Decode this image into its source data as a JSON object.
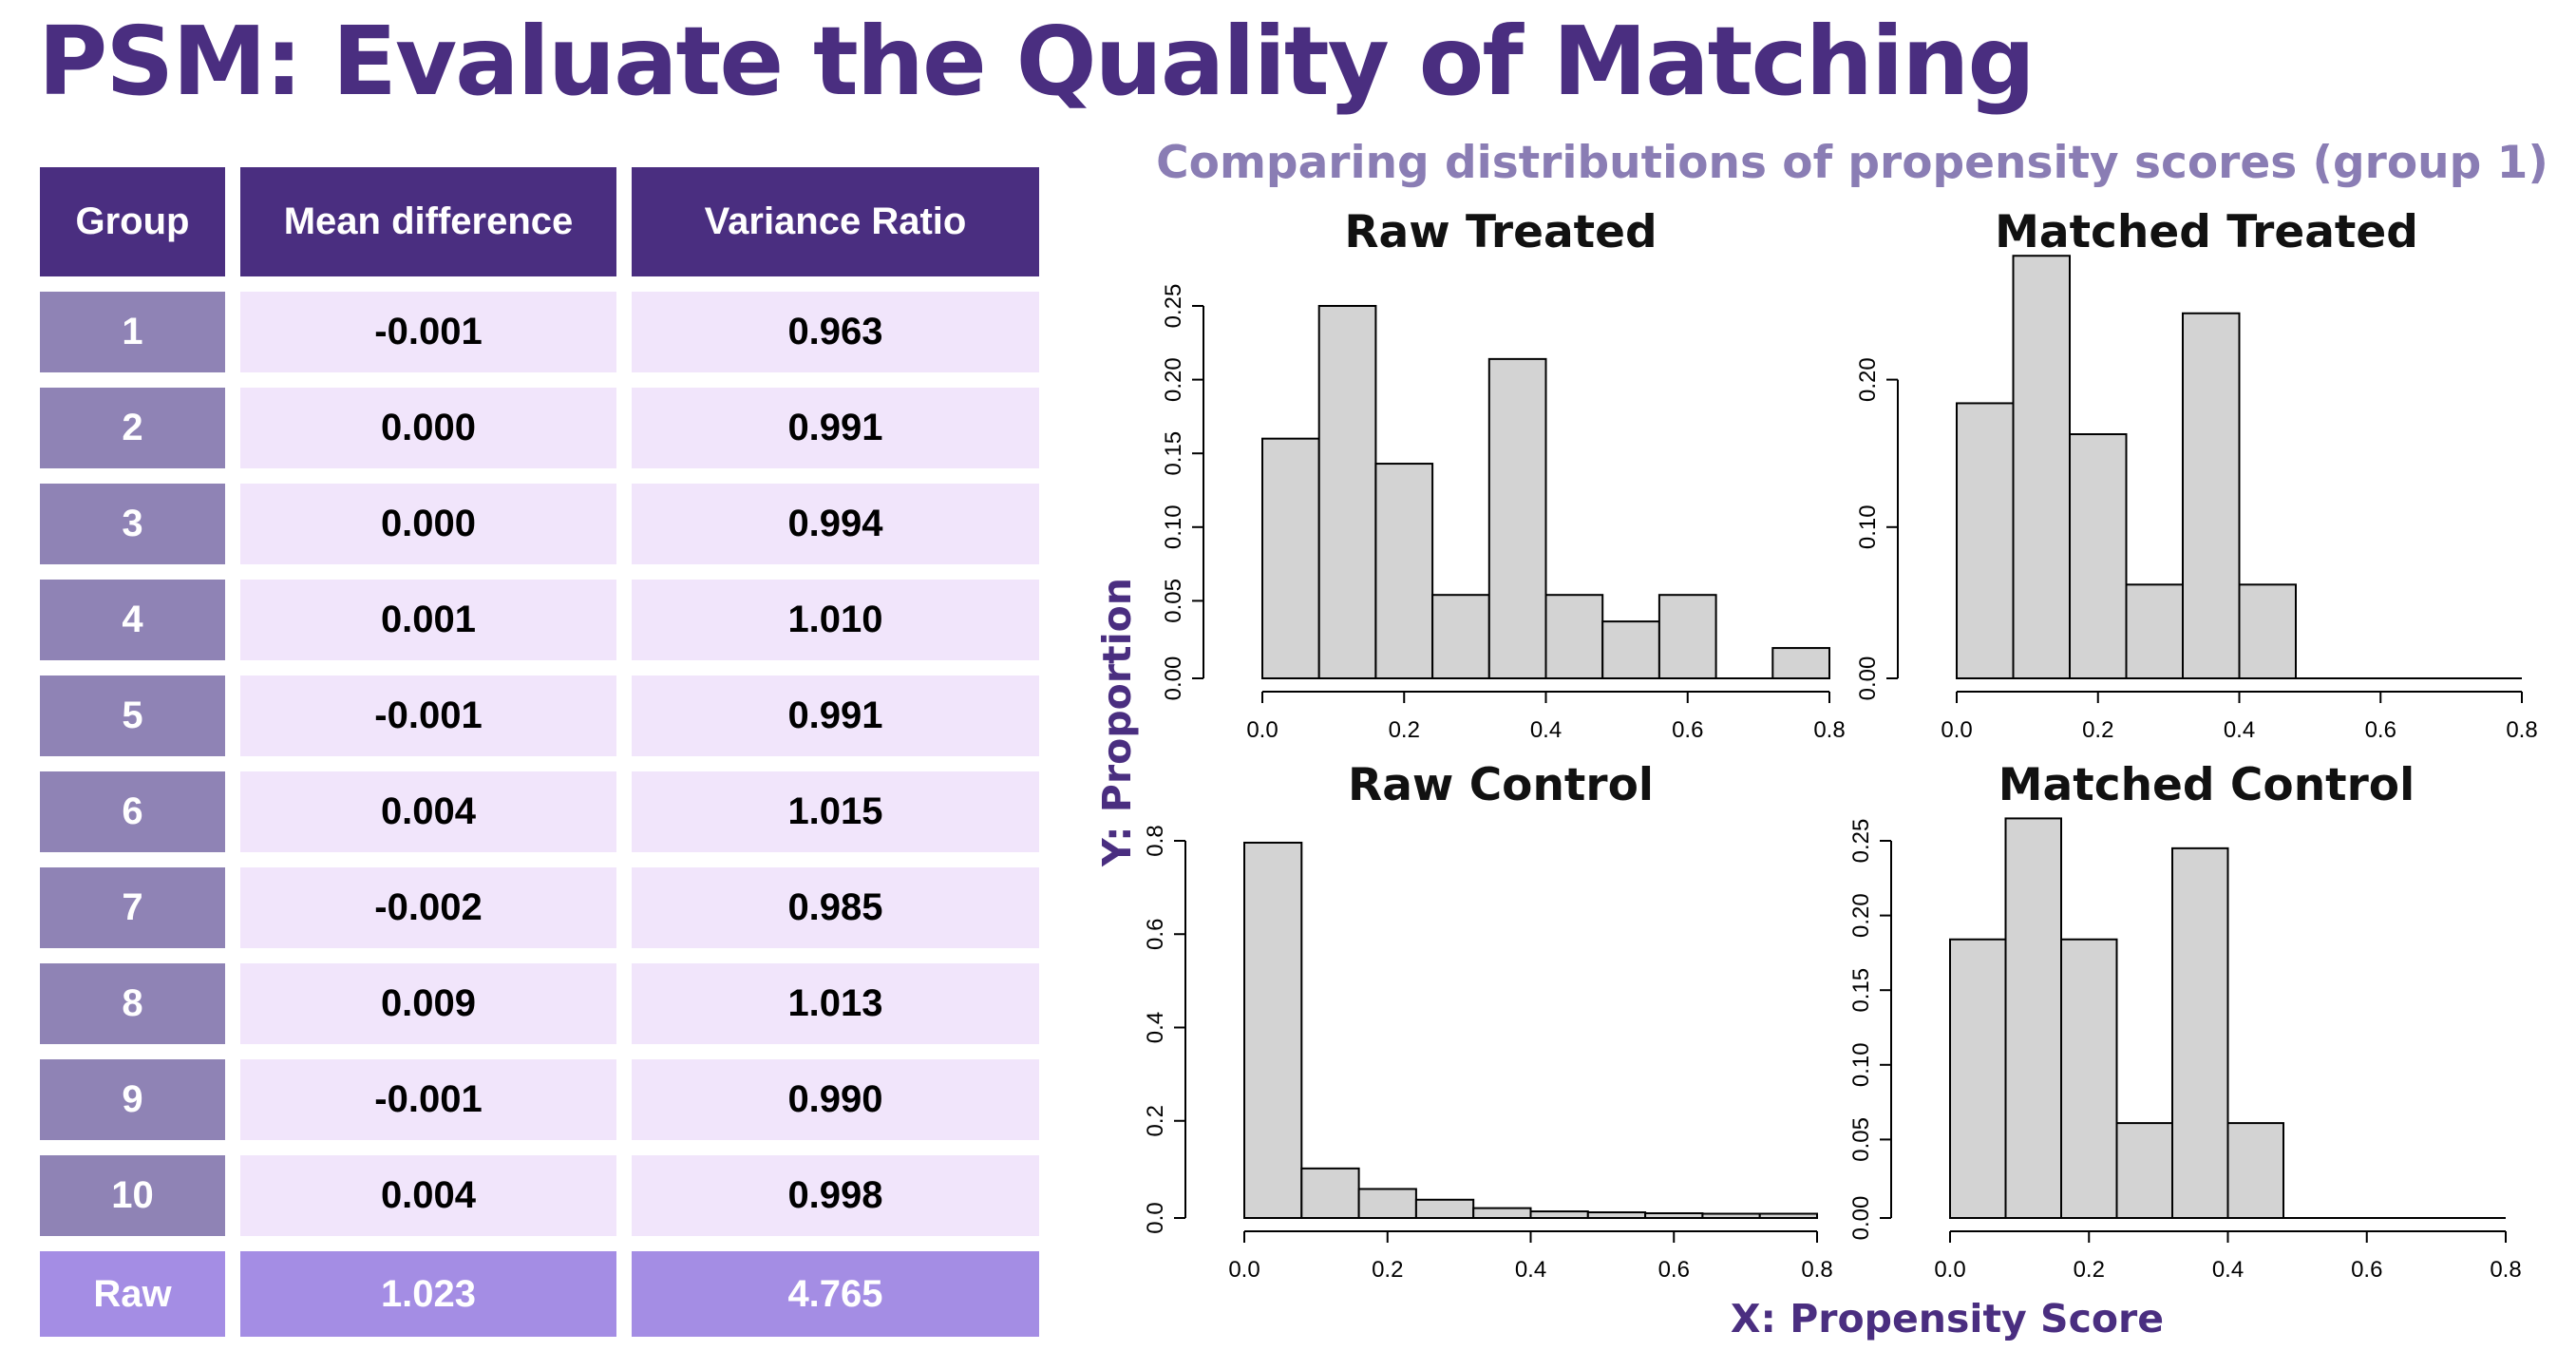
{
  "title": "PSM: Evaluate the Quality of Matching",
  "table": {
    "headers": [
      "Group",
      "Mean difference",
      "Variance Ratio"
    ],
    "rows": [
      [
        "1",
        "-0.001",
        "0.963"
      ],
      [
        "2",
        "0.000",
        "0.991"
      ],
      [
        "3",
        "0.000",
        "0.994"
      ],
      [
        "4",
        "0.001",
        "1.010"
      ],
      [
        "5",
        "-0.001",
        "0.991"
      ],
      [
        "6",
        "0.004",
        "1.015"
      ],
      [
        "7",
        "-0.002",
        "0.985"
      ],
      [
        "8",
        "0.009",
        "1.013"
      ],
      [
        "9",
        "-0.001",
        "0.990"
      ],
      [
        "10",
        "0.004",
        "0.998"
      ]
    ],
    "raw_row": [
      "Raw",
      "1.023",
      "4.765"
    ]
  },
  "figure": {
    "title": "Comparing distributions of propensity scores (group 1)",
    "ylabel": "Y: Proportion",
    "xlabel": "X: Propensity Score"
  },
  "colors": {
    "title": "#4a2e80",
    "header_bg": "#4a2e80",
    "group_cell_bg": "#8f83b5",
    "value_cell_bg": "#f1e5fb",
    "raw_row_bg": "#a48de4",
    "figure_title": "#8a7db4",
    "axis_label": "#4a2e80",
    "bar_fill": "#d3d3d3"
  },
  "chart_data": [
    {
      "type": "bar",
      "title": "Raw Treated",
      "bin_edges": [
        0.0,
        0.08,
        0.16,
        0.24,
        0.32,
        0.4,
        0.48,
        0.56,
        0.64,
        0.72,
        0.8
      ],
      "values": [
        0.16,
        0.25,
        0.143,
        0.054,
        0.214,
        0.054,
        0.036,
        0.054,
        0.0,
        0.018
      ],
      "xlim": [
        0,
        0.8
      ],
      "ylim": [
        0,
        0.25
      ],
      "xticks": [
        "0.0",
        "0.2",
        "0.4",
        "0.6",
        "0.8"
      ],
      "yticks": [
        "0.00",
        "0.05",
        "0.10",
        "0.15",
        "0.20",
        "0.25"
      ]
    },
    {
      "type": "bar",
      "title": "Matched Treated",
      "bin_edges": [
        0.0,
        0.08,
        0.16,
        0.24,
        0.32,
        0.4,
        0.48,
        0.56,
        0.64,
        0.72,
        0.8
      ],
      "values": [
        0.184,
        0.284,
        0.163,
        0.061,
        0.245,
        0.061,
        0.0,
        0.0,
        0.0,
        0.0
      ],
      "xlim": [
        0,
        0.8
      ],
      "ylim": [
        0,
        0.25
      ],
      "xticks": [
        "0.0",
        "0.2",
        "0.4",
        "0.6",
        "0.8"
      ],
      "yticks": [
        "0.00",
        "0.10",
        "0.20"
      ]
    },
    {
      "type": "bar",
      "title": "Raw Control",
      "bin_edges": [
        0.0,
        0.08,
        0.16,
        0.24,
        0.32,
        0.4,
        0.48,
        0.56,
        0.64,
        0.72,
        0.8
      ],
      "values": [
        0.796,
        0.098,
        0.054,
        0.031,
        0.013,
        0.006,
        0.004,
        0.002,
        0.001,
        0.001
      ],
      "xlim": [
        0,
        0.8
      ],
      "ylim": [
        0,
        0.8
      ],
      "xticks": [
        "0.0",
        "0.2",
        "0.4",
        "0.6",
        "0.8"
      ],
      "yticks": [
        "0.0",
        "0.2",
        "0.4",
        "0.6",
        "0.8"
      ]
    },
    {
      "type": "bar",
      "title": "Matched Control",
      "bin_edges": [
        0.0,
        0.08,
        0.16,
        0.24,
        0.32,
        0.4,
        0.48,
        0.56,
        0.64,
        0.72,
        0.8
      ],
      "values": [
        0.184,
        0.265,
        0.184,
        0.061,
        0.245,
        0.061,
        0.0,
        0.0,
        0.0,
        0.0
      ],
      "xlim": [
        0,
        0.8
      ],
      "ylim": [
        0,
        0.25
      ],
      "xticks": [
        "0.0",
        "0.2",
        "0.4",
        "0.6",
        "0.8"
      ],
      "yticks": [
        "0.00",
        "0.05",
        "0.10",
        "0.15",
        "0.20",
        "0.25"
      ]
    }
  ]
}
